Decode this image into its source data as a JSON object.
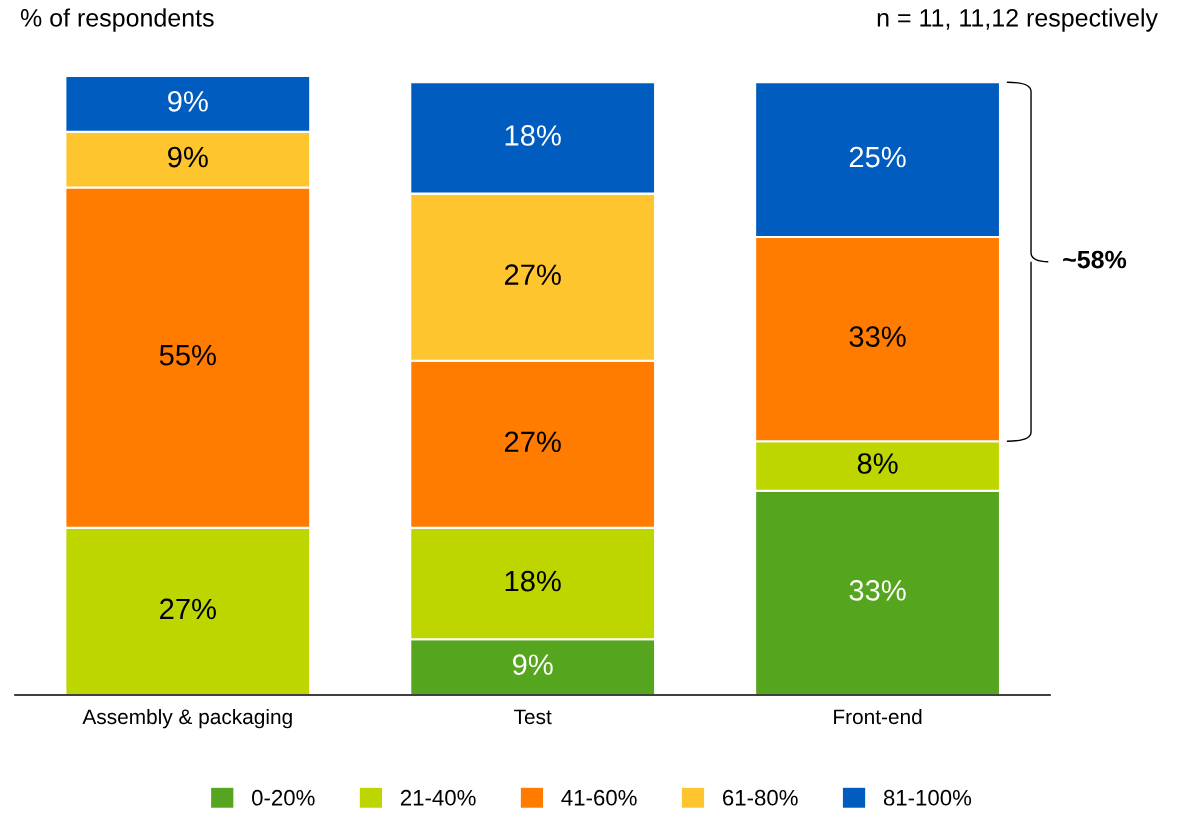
{
  "chart_data": {
    "type": "bar",
    "stacked": true,
    "ylabel": "% of respondents",
    "categories": [
      "Assembly & packaging",
      "Test",
      "Front-end"
    ],
    "series": [
      {
        "name": "0-20%",
        "color": "#56a51e",
        "values": [
          null,
          9,
          33
        ],
        "value_labels": [
          null,
          "9%",
          "33%"
        ]
      },
      {
        "name": "21-40%",
        "color": "#bdd600",
        "values": [
          27,
          18,
          8
        ],
        "value_labels": [
          "27%",
          "18%",
          "8%"
        ]
      },
      {
        "name": "41-60%",
        "color": "#ff7c00",
        "values": [
          55,
          27,
          33
        ],
        "value_labels": [
          "55%",
          "27%",
          "33%"
        ]
      },
      {
        "name": "61-80%",
        "color": "#ffc52e",
        "values": [
          9,
          27,
          null
        ],
        "value_labels": [
          "9%",
          "27%",
          null
        ]
      },
      {
        "name": "81-100%",
        "color": "#005cbf",
        "values": [
          9,
          18,
          25
        ],
        "value_labels": [
          "9%",
          "18%",
          "25%"
        ]
      }
    ],
    "annotations": [
      "n = 11, 11,12 respectively",
      "~58%"
    ],
    "legend": "bottom",
    "grid": false,
    "tick_labels": "x"
  }
}
